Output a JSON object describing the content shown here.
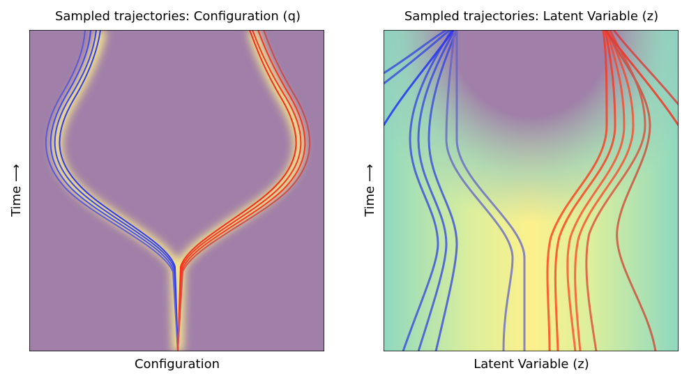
{
  "panels": [
    {
      "title": "Sampled trajectories: Configuration (q)",
      "xlabel": "Configuration",
      "ylabel": "Time ⟶"
    },
    {
      "title": "Sampled trajectories: Latent Variable (z)",
      "xlabel": "Latent Variable (z)",
      "ylabel": "Time ⟶"
    }
  ]
}
